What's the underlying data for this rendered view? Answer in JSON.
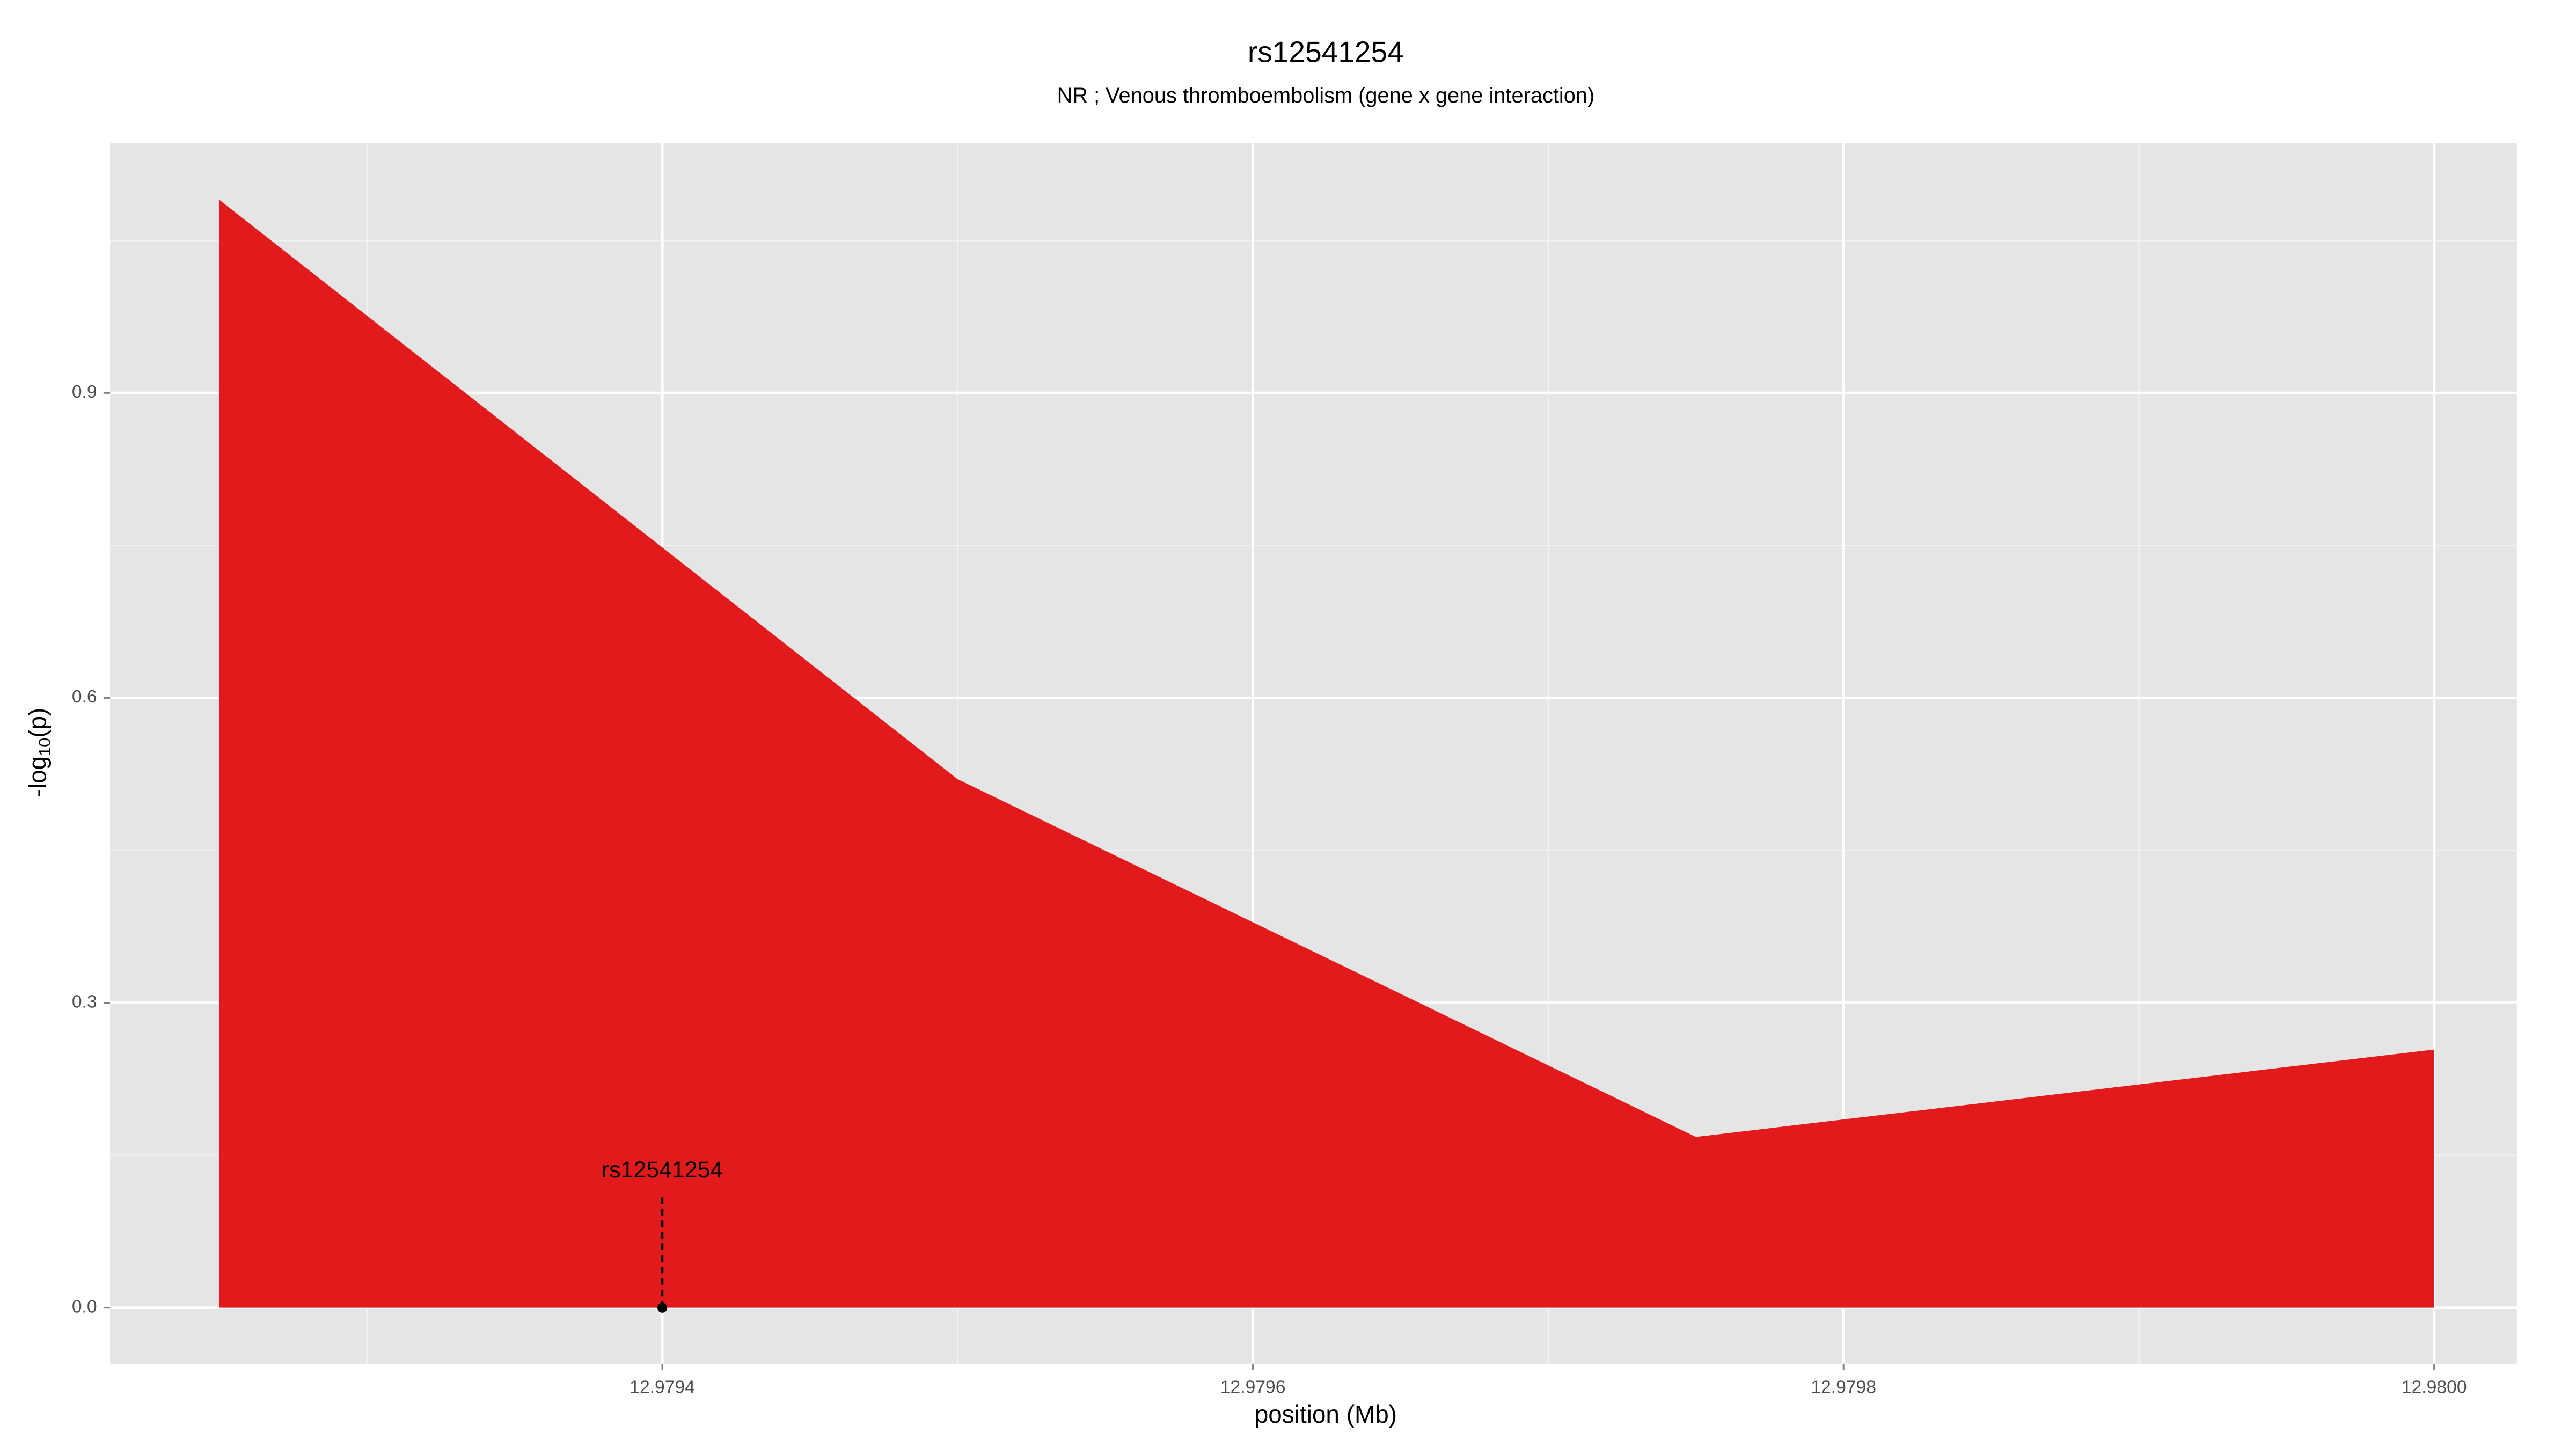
{
  "chart_data": {
    "type": "area",
    "title": "rs12541254",
    "subtitle": "NR ; Venous thromboembolism (gene x gene interaction)",
    "x_label": "position (Mb)",
    "y_label": [
      "-log",
      "10",
      "(p)"
    ],
    "x": [
      12.97925,
      12.9795,
      12.97975,
      12.98
    ],
    "values": [
      1.09,
      0.52,
      0.168,
      0.254
    ],
    "color": "#e31a1c",
    "xlim": [
      12.979213,
      12.980028
    ],
    "ylim": [
      -0.055,
      1.146
    ],
    "xticks": [
      12.9794,
      12.9796,
      12.9798,
      {
        "value": 12.98,
        "label": "12.9800"
      }
    ],
    "yticks": [
      {
        "value": 0,
        "label": "0.0"
      },
      0.3,
      0.6,
      0.9
    ],
    "x_minor_ticks": [
      12.9793,
      12.9795,
      12.9797,
      12.9799
    ],
    "y_minor_ticks": [
      0.15,
      0.45,
      0.75,
      1.05
    ],
    "grid": true,
    "annotation": {
      "label": "rs12541254",
      "x": 12.9794,
      "y": 0
    }
  }
}
